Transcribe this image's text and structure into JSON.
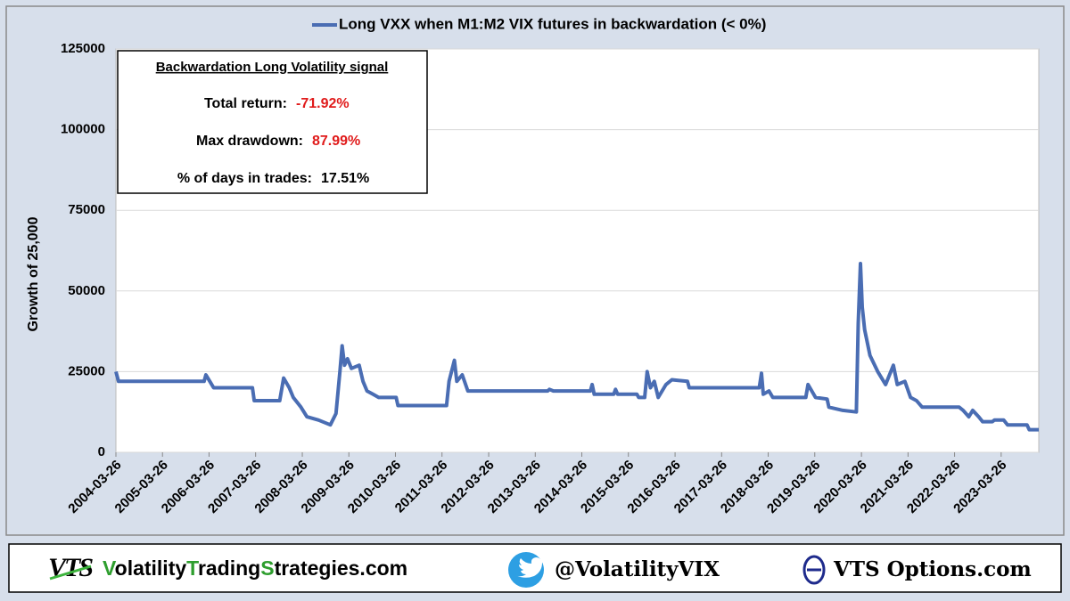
{
  "chart_data": {
    "type": "line",
    "ylabel": "Growth of 25,000",
    "xlim": [
      "2004-03-26",
      "2024-01-15"
    ],
    "xticks": [
      "2004-03-26",
      "2005-03-26",
      "2006-03-26",
      "2007-03-26",
      "2008-03-26",
      "2009-03-26",
      "2010-03-26",
      "2011-03-26",
      "2012-03-26",
      "2013-03-26",
      "2014-03-26",
      "2015-03-26",
      "2016-03-26",
      "2017-03-26",
      "2018-03-26",
      "2019-03-26",
      "2020-03-26",
      "2021-03-26",
      "2022-03-26",
      "2023-03-26"
    ],
    "ylim": [
      0,
      125000
    ],
    "yticks": [
      0,
      25000,
      50000,
      75000,
      100000,
      125000
    ],
    "grid": true,
    "legend": "top",
    "series": [
      {
        "name": "Long VXX when M1:M2 VIX futures in backwardation  (< 0%)",
        "color": "#4a6db3",
        "x": [
          "2004-03-26",
          "2004-04-15",
          "2006-02-15",
          "2006-03-01",
          "2006-04-01",
          "2006-05-01",
          "2007-03-01",
          "2007-03-15",
          "2007-10-01",
          "2007-11-01",
          "2007-12-15",
          "2008-01-15",
          "2008-03-15",
          "2008-05-01",
          "2008-08-01",
          "2008-11-01",
          "2008-12-15",
          "2009-01-15",
          "2009-02-01",
          "2009-02-20",
          "2009-03-15",
          "2009-04-15",
          "2009-06-15",
          "2009-07-15",
          "2009-08-15",
          "2009-10-01",
          "2009-11-15",
          "2010-04-01",
          "2010-04-15",
          "2011-05-01",
          "2011-05-20",
          "2011-07-01",
          "2011-07-20",
          "2011-09-01",
          "2011-10-15",
          "2013-07-01",
          "2013-07-15",
          "2013-08-15",
          "2014-06-01",
          "2014-06-15",
          "2014-07-01",
          "2014-12-01",
          "2014-12-15",
          "2015-01-01",
          "2015-06-01",
          "2015-06-15",
          "2015-08-01",
          "2015-08-20",
          "2015-09-15",
          "2015-10-15",
          "2015-11-15",
          "2016-01-15",
          "2016-03-01",
          "2016-07-01",
          "2016-07-15",
          "2018-01-15",
          "2018-02-01",
          "2018-02-15",
          "2018-04-01",
          "2018-05-01",
          "2019-01-15",
          "2019-02-01",
          "2019-04-01",
          "2019-07-01",
          "2019-07-15",
          "2019-11-01",
          "2020-02-15",
          "2020-03-01",
          "2020-03-18",
          "2020-04-01",
          "2020-04-20",
          "2020-06-01",
          "2020-08-01",
          "2020-10-01",
          "2020-12-01",
          "2021-01-01",
          "2021-03-01",
          "2021-04-15",
          "2021-06-01",
          "2021-07-15",
          "2022-05-01",
          "2022-06-01",
          "2022-07-15",
          "2022-08-15",
          "2022-10-01",
          "2022-11-01",
          "2023-01-15",
          "2023-02-01",
          "2023-04-15",
          "2023-05-15",
          "2023-10-15",
          "2023-11-01",
          "2024-01-15"
        ],
        "values": [
          25000,
          22000,
          22000,
          24000,
          22000,
          20000,
          20000,
          16000,
          16000,
          23000,
          20000,
          17000,
          14000,
          11000,
          10000,
          8500,
          12000,
          25000,
          33000,
          27000,
          29000,
          26000,
          27000,
          22000,
          19000,
          18000,
          17000,
          17000,
          14500,
          14500,
          22000,
          28500,
          22000,
          24000,
          19000,
          19000,
          19500,
          19000,
          19000,
          21000,
          18000,
          18000,
          19500,
          18000,
          18000,
          17000,
          17000,
          25000,
          20000,
          22000,
          17000,
          21000,
          22500,
          22000,
          20000,
          20000,
          24500,
          18000,
          19000,
          17000,
          17000,
          21000,
          17000,
          16500,
          14000,
          13000,
          12500,
          40000,
          58500,
          45000,
          38000,
          30000,
          25000,
          21000,
          27000,
          21000,
          22000,
          17000,
          16000,
          14000,
          14000,
          13000,
          11000,
          13000,
          11000,
          9500,
          9500,
          10000,
          10000,
          8500,
          8500,
          7000,
          7000
        ]
      }
    ],
    "annotations": {
      "title": "Backwardation Long Volatility signal",
      "rows": [
        {
          "label": "Total return:",
          "value": "-71.92%",
          "color": "#e01b1b"
        },
        {
          "label": "Max drawdown:",
          "value": "87.99%",
          "color": "#e01b1b"
        },
        {
          "label": "% of days in trades:",
          "value": "17.51%",
          "color": "#000000"
        }
      ]
    }
  },
  "footer": {
    "logo": "VTS",
    "site_parts": [
      "V",
      "olatility",
      "T",
      "rading",
      "S",
      "trategies.com"
    ],
    "twitter": "@VolatilityVIX",
    "options": "VTS Options.com"
  }
}
